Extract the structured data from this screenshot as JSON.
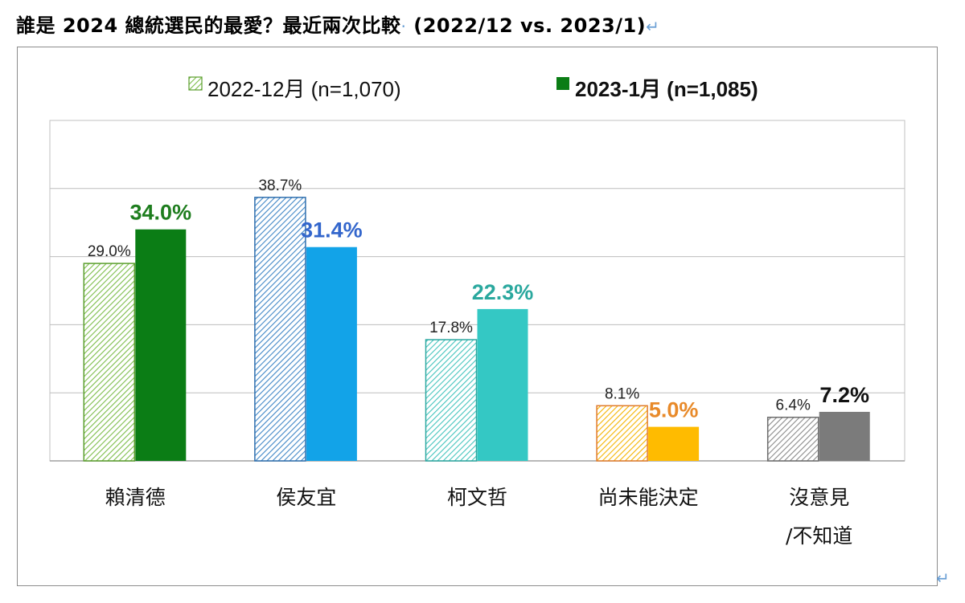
{
  "title": {
    "main": "誰是 2024 總統選民的最愛？最近兩次比較",
    "period": "(2022/12 vs. 2023/1)",
    "mark": "↵"
  },
  "corner_mark": "↵",
  "colors": {
    "grid": "#bdbdbd",
    "axis_box": "#c0c0c0"
  },
  "chart_data": {
    "type": "bar",
    "categories": [
      "賴清德",
      "侯友宜",
      "柯文哲",
      "尚未能決定",
      "沒意見/不知道"
    ],
    "category_lines": [
      [
        "賴清德"
      ],
      [
        "侯友宜"
      ],
      [
        "柯文哲"
      ],
      [
        "尚未能決定"
      ],
      [
        "沒意見",
        "/不知道"
      ]
    ],
    "series": [
      {
        "name": "2022-12月 (n=1,070)",
        "values": [
          29.0,
          38.7,
          17.8,
          8.1,
          6.4
        ],
        "labels": [
          "29.0%",
          "38.7%",
          "17.8%",
          "8.1%",
          "6.4%"
        ],
        "style": "hatched"
      },
      {
        "name": "2023-1月 (n=1,085)",
        "values": [
          34.0,
          31.4,
          22.3,
          5.0,
          7.2
        ],
        "labels": [
          "34.0%",
          "31.4%",
          "22.3%",
          "5.0%",
          "7.2%"
        ],
        "style": "solid"
      }
    ],
    "bar_colors": {
      "prev": [
        "#7cbd4a",
        "#3f86c6",
        "#43c4bd",
        "#f5b400",
        "#8a8a8a"
      ],
      "prev_outline": [
        "#5a9e2d",
        "#2f6fae",
        "#2ba7a0",
        "#e07a2a",
        "#6d6d6d"
      ],
      "curr": [
        "#0b7d15",
        "#12a3e8",
        "#34c8c4",
        "#ffbb00",
        "#7b7b7b"
      ],
      "curr_label": [
        "#1e7d1e",
        "#3366cc",
        "#2aa89e",
        "#e88a2a",
        "#111111"
      ]
    },
    "legend": {
      "position": "top",
      "items": [
        "2022-12月 (n=1,070)",
        "2023-1月 (n=1,085)"
      ],
      "swatch_colors": [
        "#7cbd4a",
        "#0b7d15"
      ]
    },
    "ylim": [
      0,
      50
    ],
    "grid": true
  }
}
